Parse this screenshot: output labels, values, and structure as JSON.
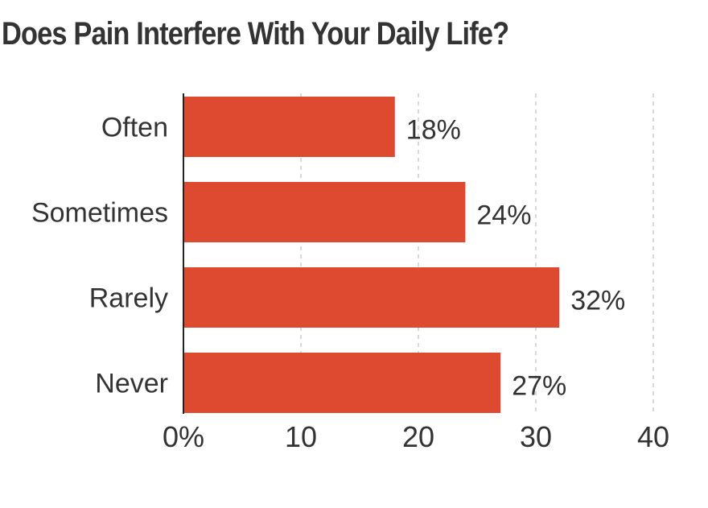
{
  "chart_data": {
    "type": "bar",
    "orientation": "horizontal",
    "title": "Does Pain Interfere With Your Daily Life?",
    "categories": [
      "Often",
      "Sometimes",
      "Rarely",
      "Never"
    ],
    "values": [
      18,
      24,
      32,
      27
    ],
    "value_labels": [
      "18%",
      "24%",
      "32%",
      "27%"
    ],
    "xlim": [
      0,
      40
    ],
    "x_ticks": [
      0,
      10,
      20,
      30,
      40
    ],
    "x_tick_labels": [
      "0%",
      "10",
      "20",
      "30",
      "40"
    ],
    "xlabel": "",
    "ylabel": "",
    "grid": "vertical dashed",
    "bar_color": "#de4a30"
  }
}
